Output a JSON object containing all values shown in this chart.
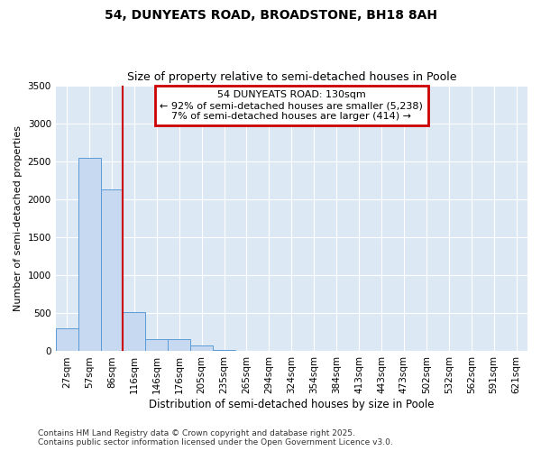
{
  "title": "54, DUNYEATS ROAD, BROADSTONE, BH18 8AH",
  "subtitle": "Size of property relative to semi-detached houses in Poole",
  "xlabel": "Distribution of semi-detached houses by size in Poole",
  "ylabel": "Number of semi-detached properties",
  "bin_labels": [
    "27sqm",
    "57sqm",
    "86sqm",
    "116sqm",
    "146sqm",
    "176sqm",
    "205sqm",
    "235sqm",
    "265sqm",
    "294sqm",
    "324sqm",
    "354sqm",
    "384sqm",
    "413sqm",
    "443sqm",
    "473sqm",
    "502sqm",
    "532sqm",
    "562sqm",
    "591sqm",
    "621sqm"
  ],
  "bar_heights": [
    300,
    2540,
    2130,
    510,
    155,
    155,
    75,
    18,
    4,
    1,
    0,
    0,
    0,
    0,
    0,
    0,
    0,
    0,
    0,
    0,
    0
  ],
  "bar_color": "#c6d9f0",
  "bar_edge_color": "#5b9bd5",
  "property_line_color": "#cc0000",
  "annotation_title": "54 DUNYEATS ROAD: 130sqm",
  "annotation_line1": "← 92% of semi-detached houses are smaller (5,238)",
  "annotation_line2": "7% of semi-detached houses are larger (414) →",
  "annotation_box_color": "#cc0000",
  "ylim": [
    0,
    3500
  ],
  "yticks": [
    0,
    500,
    1000,
    1500,
    2000,
    2500,
    3000,
    3500
  ],
  "fig_background": "#ffffff",
  "plot_background": "#dde8f5",
  "footer1": "Contains HM Land Registry data © Crown copyright and database right 2025.",
  "footer2": "Contains public sector information licensed under the Open Government Licence v3.0.",
  "title_fontsize": 10,
  "subtitle_fontsize": 9,
  "xlabel_fontsize": 8.5,
  "ylabel_fontsize": 8,
  "tick_fontsize": 7.5,
  "annotation_fontsize": 8,
  "footer_fontsize": 6.5
}
